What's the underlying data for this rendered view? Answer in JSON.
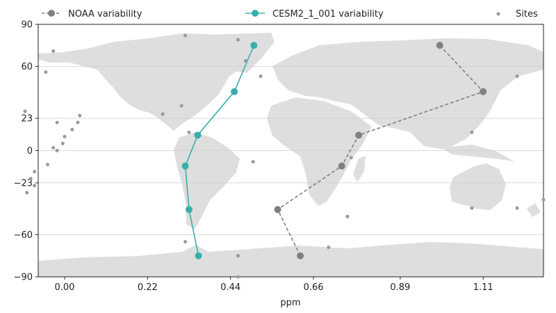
{
  "chart_data": {
    "type": "line",
    "title": "",
    "xlabel": "ppm",
    "ylabel": "",
    "xlim": [
      -0.07,
      1.27
    ],
    "ylim": [
      -90,
      90
    ],
    "x_ticks": [
      0.0,
      0.22,
      0.44,
      0.66,
      0.89,
      1.11
    ],
    "x_tick_labels": [
      "0.00",
      "0.22",
      "0.44",
      "0.66",
      "0.89",
      "1.11"
    ],
    "y_ticks": [
      90,
      60,
      23,
      0,
      -23,
      -60,
      -90
    ],
    "y_tick_labels": [
      "90",
      "60",
      "23",
      "0",
      "−23",
      "−60",
      "−90"
    ],
    "grid": "horizontal",
    "legend_position": "top",
    "background": "world-map-land-silhouette",
    "series": [
      {
        "name": "NOAA variability",
        "style": "dashed-line-with-markers",
        "color": "#808080",
        "points": [
          [
            0.625,
            -75
          ],
          [
            0.565,
            -42
          ],
          [
            0.735,
            -11
          ],
          [
            0.78,
            11
          ],
          [
            1.11,
            42
          ],
          [
            0.995,
            75
          ]
        ]
      },
      {
        "name": "CESM2_1_001 variability",
        "style": "solid-line-with-markers",
        "color": "#3aafa9",
        "points": [
          [
            0.355,
            -75
          ],
          [
            0.33,
            -42
          ],
          [
            0.32,
            -11
          ],
          [
            0.353,
            11
          ],
          [
            0.45,
            42
          ],
          [
            0.502,
            75
          ]
        ]
      },
      {
        "name": "Sites",
        "style": "scatter",
        "color": "#999999",
        "points": [
          [
            0.32,
            82
          ],
          [
            0.46,
            79
          ],
          [
            -0.03,
            71
          ],
          [
            0.48,
            64
          ],
          [
            -0.05,
            56
          ],
          [
            0.52,
            53
          ],
          [
            1.2,
            53
          ],
          [
            -0.105,
            28
          ],
          [
            0.26,
            26
          ],
          [
            0.31,
            32
          ],
          [
            0.04,
            25
          ],
          [
            -0.02,
            20
          ],
          [
            0.035,
            20
          ],
          [
            0.02,
            15
          ],
          [
            0.0,
            10
          ],
          [
            -0.005,
            5
          ],
          [
            -0.03,
            2
          ],
          [
            -0.02,
            0
          ],
          [
            0.33,
            13
          ],
          [
            1.08,
            13
          ],
          [
            -0.045,
            -10
          ],
          [
            -0.08,
            -15
          ],
          [
            -0.09,
            -20
          ],
          [
            -0.08,
            -25
          ],
          [
            -0.1,
            -30
          ],
          [
            0.5,
            -8
          ],
          [
            0.76,
            -5
          ],
          [
            0.75,
            -47
          ],
          [
            1.08,
            -41
          ],
          [
            1.2,
            -41
          ],
          [
            1.27,
            -35
          ],
          [
            0.32,
            -65
          ],
          [
            0.7,
            -69
          ],
          [
            0.46,
            -75
          ],
          [
            0.46,
            -90
          ]
        ]
      }
    ]
  }
}
